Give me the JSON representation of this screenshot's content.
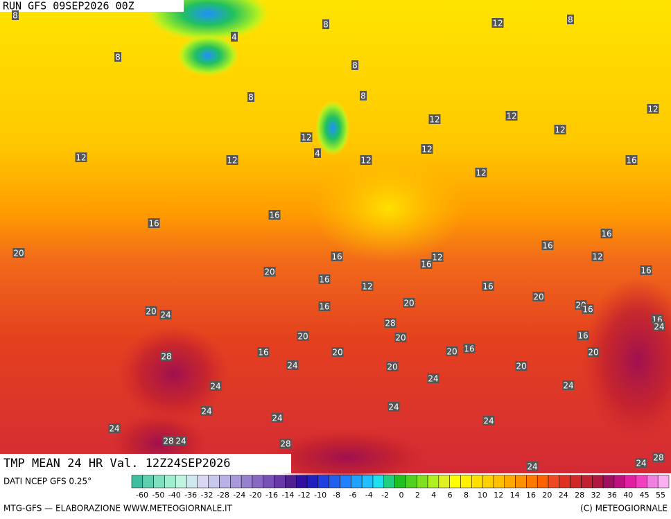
{
  "header": {
    "run": "RUN GFS 09SEP2026 00Z"
  },
  "map": {
    "title": "TMP MEAN 24 HR Val. 12Z24SEP2026",
    "contour_labels": [
      8,
      8,
      4,
      8,
      8,
      8,
      8,
      12,
      8,
      12,
      12,
      12,
      12,
      12,
      12,
      4,
      12,
      12,
      12,
      12,
      16,
      16,
      16,
      16,
      16,
      20,
      16,
      12,
      16,
      12,
      16,
      20,
      16,
      12,
      16,
      20,
      16,
      20,
      20,
      16,
      20,
      24,
      16,
      28,
      16,
      20,
      20,
      16,
      20,
      24,
      20,
      16,
      20,
      28,
      24,
      20,
      20,
      24,
      24,
      24,
      24,
      24,
      24,
      24,
      24,
      28,
      24,
      28,
      24,
      24,
      28
    ]
  },
  "legend": {
    "source": "DATI NCEP GFS 0.25°",
    "colors": [
      "#3fbf9f",
      "#5fcfaf",
      "#7fdfbf",
      "#9fefcf",
      "#bff5df",
      "#cfe8f0",
      "#d8d8f5",
      "#c8c8ee",
      "#b8b0e6",
      "#a898dc",
      "#9880d0",
      "#8868c4",
      "#7850b8",
      "#6838a8",
      "#502090",
      "#3010a0",
      "#2020c0",
      "#2040e0",
      "#2060f0",
      "#2080ff",
      "#20a0ff",
      "#20c0ff",
      "#20e0f0",
      "#20d080",
      "#20c020",
      "#50d020",
      "#80e020",
      "#b0f020",
      "#e0f020",
      "#ffff00",
      "#fff000",
      "#ffe000",
      "#ffd000",
      "#ffc000",
      "#ffa800",
      "#ff9000",
      "#ff7800",
      "#ff6000",
      "#f04820",
      "#e03020",
      "#d02828",
      "#c02030",
      "#b01840",
      "#a01060",
      "#c01080",
      "#e020a0",
      "#f040c0",
      "#f080e0",
      "#f8b0f0"
    ],
    "ticks": [
      -60,
      -50,
      -40,
      -36,
      -32,
      -28,
      -24,
      -20,
      -16,
      -14,
      -12,
      -10,
      -8,
      -6,
      -4,
      -2,
      0,
      2,
      4,
      6,
      8,
      10,
      12,
      14,
      16,
      20,
      24,
      28,
      32,
      36,
      40,
      45,
      55
    ]
  },
  "footer": {
    "left": "MTG-GFS — ELABORAZIONE WWW.METEOGIORNALE.IT",
    "right": "(C) METEOGIORNALE"
  }
}
